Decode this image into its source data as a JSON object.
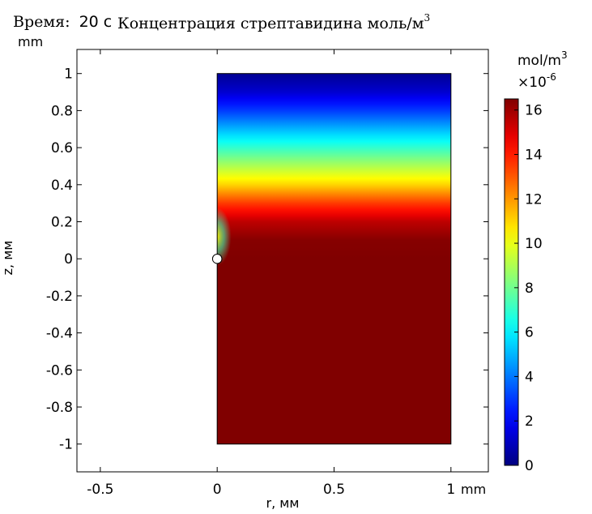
{
  "chart_data": {
    "type": "heatmap",
    "title_prefix": "Время:",
    "title_time": "20 с",
    "title": "Концентрация стрептавидина моль/м",
    "title_superscript": "3",
    "xlabel": "r, мм",
    "ylabel": "z, мм",
    "x_unit": "mm",
    "y_unit": "mm",
    "xlim": [
      -0.6,
      1.16
    ],
    "ylim": [
      -1.15,
      1.13
    ],
    "x_ticks": [
      -0.5,
      0,
      0.5,
      1
    ],
    "x_tick_labels": [
      "-0.5",
      "0",
      "0.5",
      "1"
    ],
    "y_ticks": [
      1,
      0.8,
      0.6,
      0.4,
      0.2,
      0,
      -0.2,
      -0.4,
      -0.6,
      -0.8,
      -1
    ],
    "y_tick_labels": [
      "1",
      "0.8",
      "0.6",
      "0.4",
      "0.2",
      "0",
      "-0.2",
      "-0.4",
      "-0.6",
      "-0.8",
      "-1"
    ],
    "domain": {
      "r": [
        0,
        1
      ],
      "z": [
        -1,
        1
      ]
    },
    "sphere": {
      "center_r": 0,
      "center_z": 0,
      "radius": 0.02
    },
    "concentration_profile": {
      "z": [
        1.0,
        0.9,
        0.8,
        0.7,
        0.6,
        0.5,
        0.4,
        0.3,
        0.2,
        0.1,
        0.0,
        -1.0
      ],
      "value": [
        0.3,
        1.3,
        3.0,
        5.0,
        7.0,
        9.0,
        11.0,
        13.5,
        15.5,
        16.4,
        16.5,
        16.5
      ]
    },
    "colorbar": {
      "unit": "mol/m",
      "unit_superscript": "3",
      "multiplier": "×10",
      "multiplier_exponent": "-6",
      "min": 0,
      "max": 16.5,
      "ticks": [
        0,
        2,
        4,
        6,
        8,
        10,
        12,
        14,
        16
      ],
      "tick_labels": [
        "0",
        "2",
        "4",
        "6",
        "8",
        "10",
        "12",
        "14",
        "16"
      ],
      "colormap": "jet"
    },
    "grid": false,
    "legend": "colorbar-right"
  }
}
